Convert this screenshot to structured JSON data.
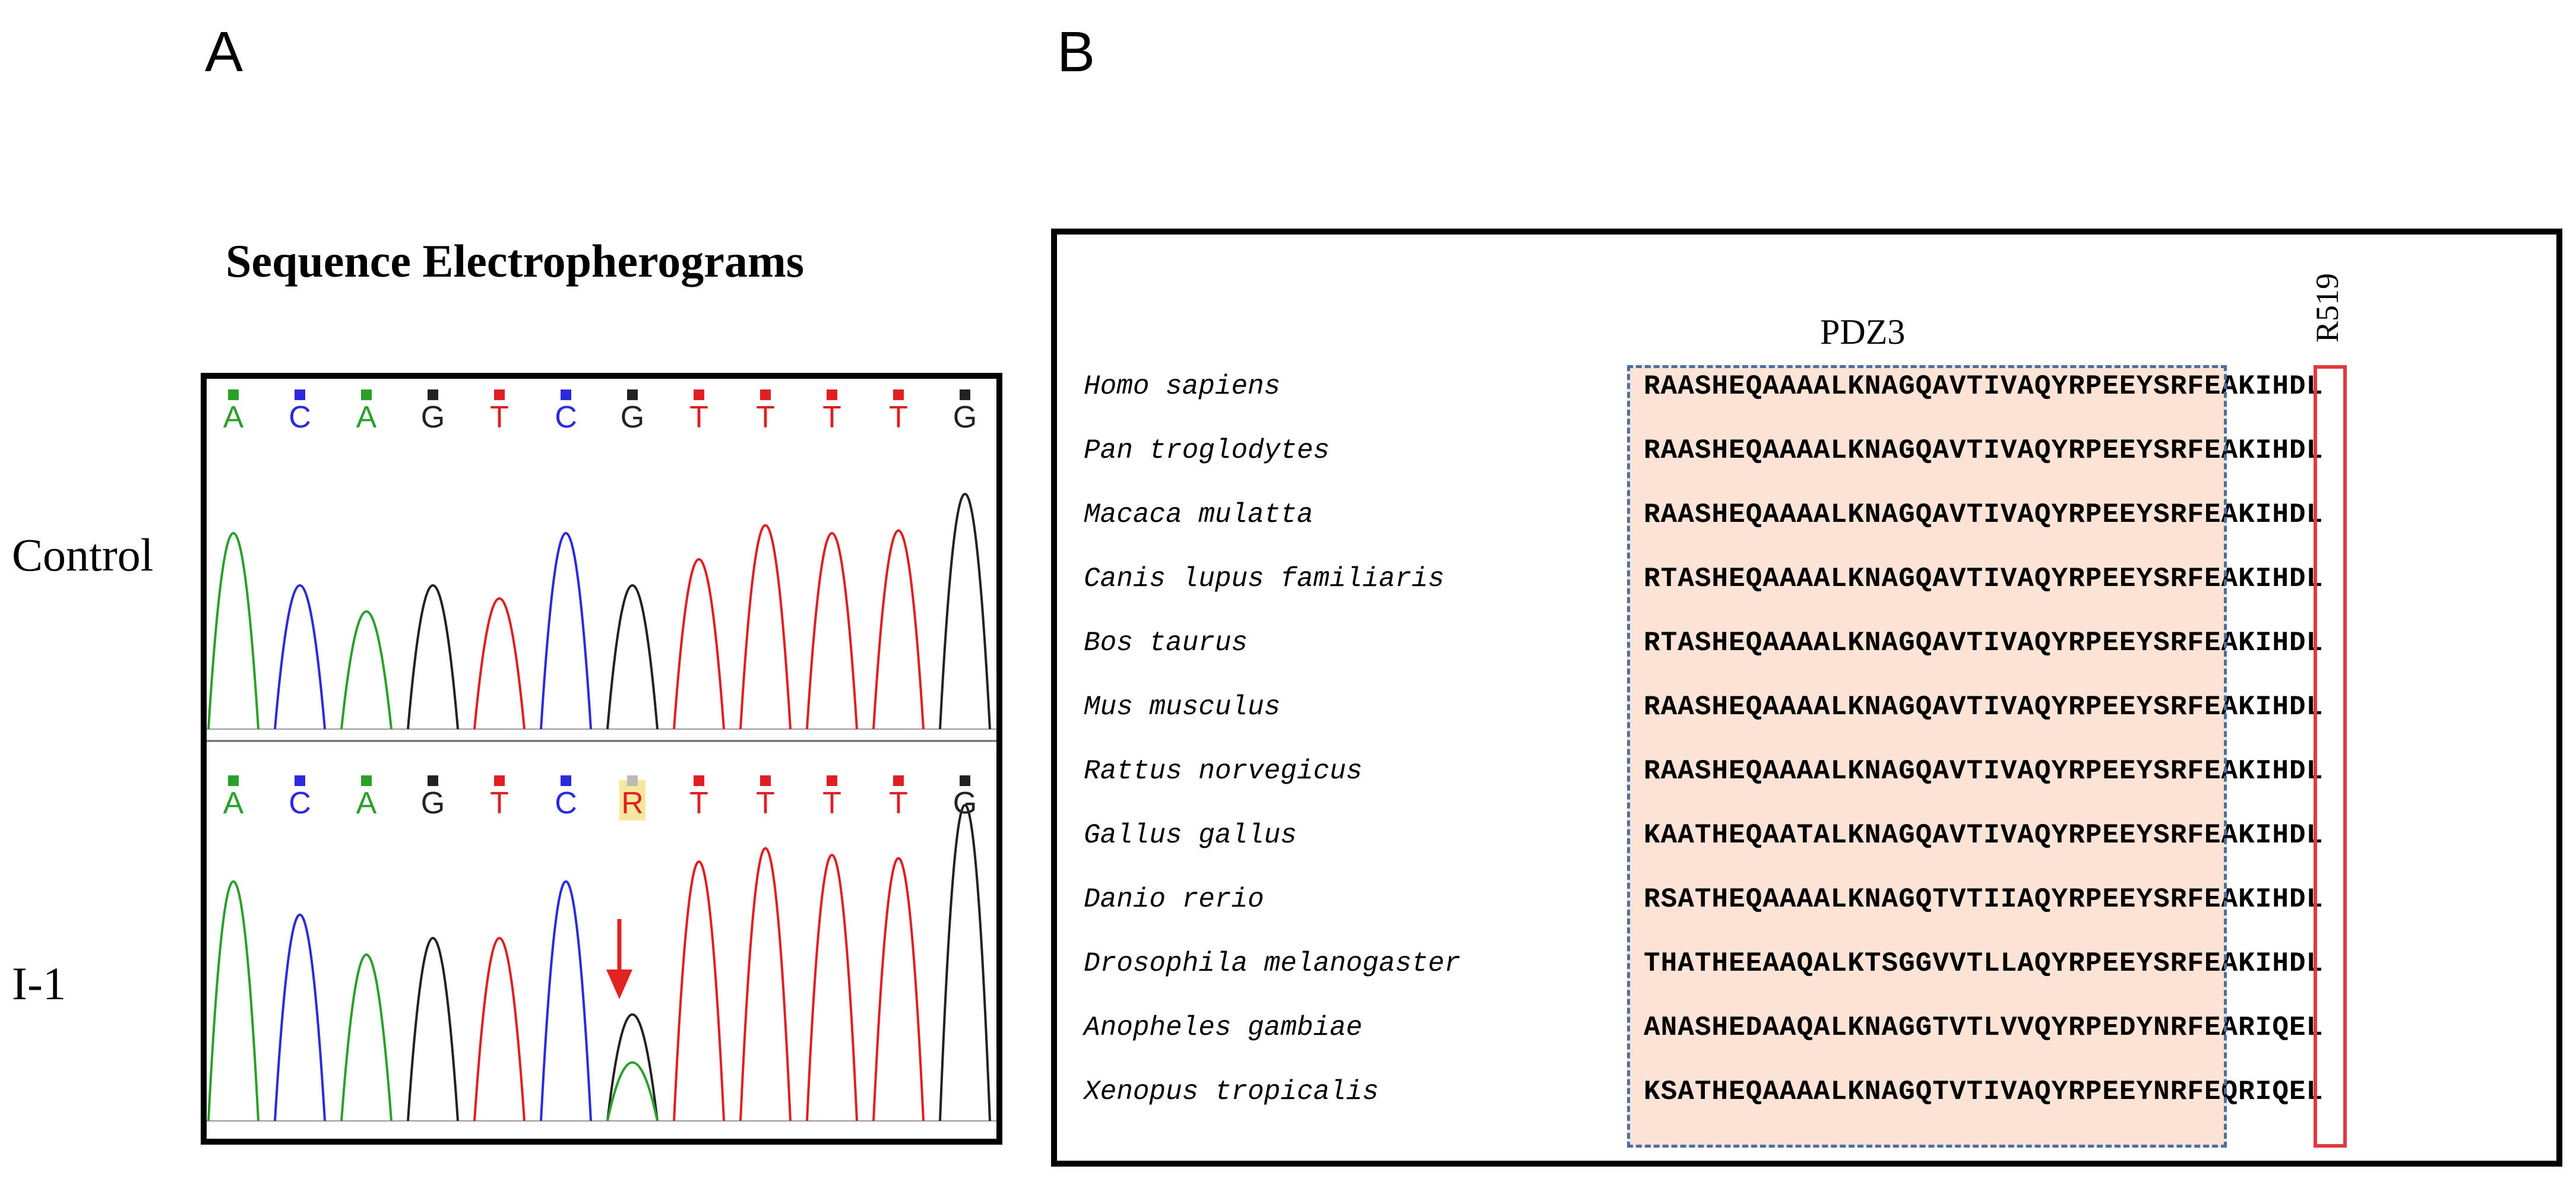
{
  "panel_a": {
    "letter": "A",
    "title": "Sequence Electropherograms",
    "rows": [
      {
        "label": "Control",
        "bases": [
          "A",
          "C",
          "A",
          "G",
          "T",
          "C",
          "G",
          "T",
          "T",
          "T",
          "T",
          "G"
        ],
        "peaks": [
          0.75,
          0.55,
          0.45,
          0.55,
          0.5,
          0.75,
          0.55,
          0.65,
          0.78,
          0.75,
          0.76,
          0.9
        ]
      },
      {
        "label": "I-1",
        "bases": [
          "A",
          "C",
          "A",
          "G",
          "T",
          "C",
          "R",
          "T",
          "T",
          "T",
          "T",
          "G"
        ],
        "peaks": [
          0.72,
          0.62,
          0.5,
          0.55,
          0.55,
          0.72,
          0.32,
          0.78,
          0.82,
          0.8,
          0.79,
          0.95
        ],
        "mutant_index": 6
      }
    ],
    "base_colors": {
      "A": "#2aa02a",
      "C": "#2b2bdc",
      "G": "#222222",
      "T": "#e02020",
      "R": "#e02020"
    },
    "arrow_color": "#e32222",
    "highlight_color": "#f7e7a0"
  },
  "panel_b": {
    "letter": "B",
    "region_label": "PDZ3",
    "site_label": "R519",
    "region_fill": "#fbe4d5",
    "region_border": "#4a6fa5",
    "site_border": "#e0393e",
    "rows": [
      {
        "species": "Homo sapiens",
        "sequence": "RAASHEQAAAALKNAGQAVTIVAQYRPEEYSRFEAKIHDL"
      },
      {
        "species": "Pan troglodytes",
        "sequence": "RAASHEQAAAALKNAGQAVTIVAQYRPEEYSRFEAKIHDL"
      },
      {
        "species": "Macaca mulatta",
        "sequence": "RAASHEQAAAALKNAGQAVTIVAQYRPEEYSRFEAKIHDL"
      },
      {
        "species": "Canis lupus familiaris",
        "sequence": "RTASHEQAAAALKNAGQAVTIVAQYRPEEYSRFEAKIHDL"
      },
      {
        "species": "Bos taurus",
        "sequence": "RTASHEQAAAALKNAGQAVTIVAQYRPEEYSRFEAKIHDL"
      },
      {
        "species": "Mus musculus",
        "sequence": "RAASHEQAAAALKNAGQAVTIVAQYRPEEYSRFEAKIHDL"
      },
      {
        "species": "Rattus norvegicus",
        "sequence": "RAASHEQAAAALKNAGQAVTIVAQYRPEEYSRFEAKIHDL"
      },
      {
        "species": "Gallus gallus",
        "sequence": "KAATHEQAATALKNAGQAVTIVAQYRPEEYSRFEAKIHDL"
      },
      {
        "species": "Danio rerio",
        "sequence": "RSATHEQAAAALKNAGQTVTIIAQYRPEEYSRFEAKIHDL"
      },
      {
        "species": "Drosophila melanogaster",
        "sequence": "THATHEEAAQALKTSGGVVTLLAQYRPEEYSRFEAKIHDL"
      },
      {
        "species": "Anopheles gambiae",
        "sequence": "ANASHEDAAQALKNAGGTVTLVVQYRPEDYNRFEARIQEL"
      },
      {
        "species": "Xenopus tropicalis",
        "sequence": "KSATHEQAAAALKNAGQTVTIVAQYRPEEYNRFEQRIQEL"
      }
    ]
  }
}
